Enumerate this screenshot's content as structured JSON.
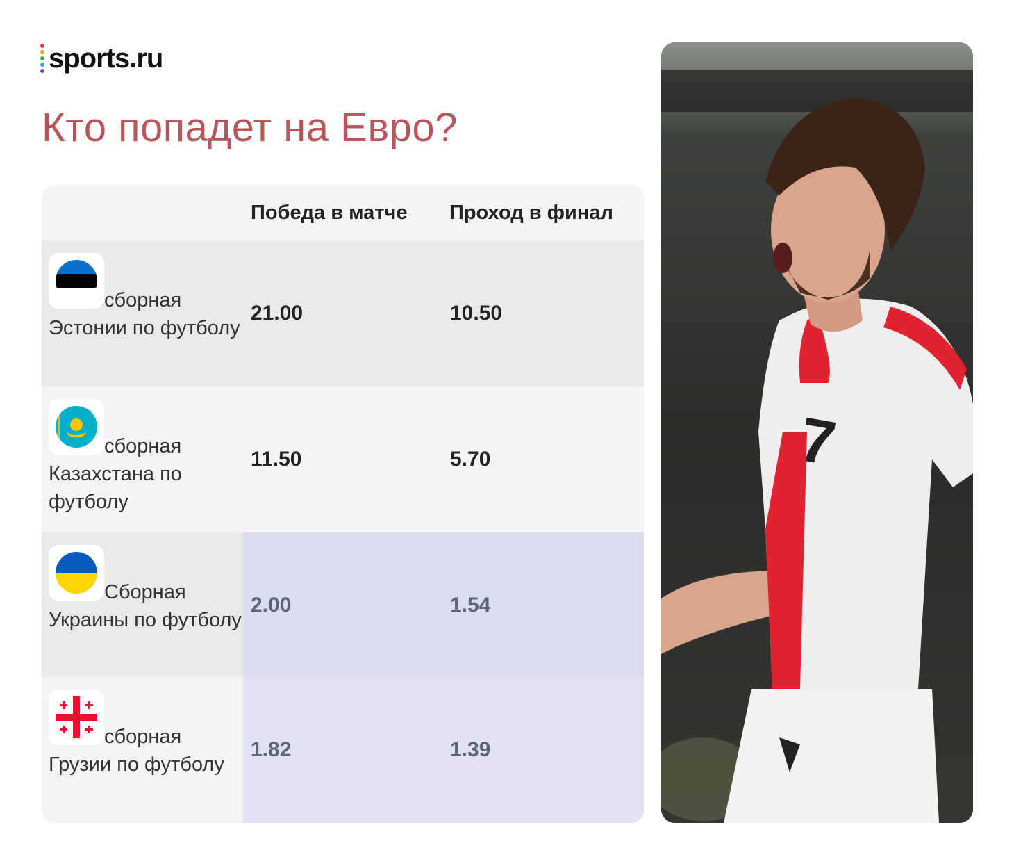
{
  "brand": {
    "name": "sports.ru"
  },
  "title": "Кто попадет на Евро?",
  "table": {
    "columns": [
      "Победа в матче",
      "Проход в финал"
    ],
    "rows": [
      {
        "team_first": "сборная",
        "team_rest": "Эстонии по футболу",
        "flag": "estonia-flag-icon",
        "win": "21.00",
        "final": "10.50",
        "highlight": false
      },
      {
        "team_first": "сборная",
        "team_rest": "Казахстана по футболу",
        "flag": "kazakhstan-flag-icon",
        "win": "11.50",
        "final": "5.70",
        "highlight": false
      },
      {
        "team_first": "Сборная",
        "team_rest": "Украины по футболу",
        "flag": "ukraine-flag-icon",
        "win": "2.00",
        "final": "1.54",
        "highlight": true
      },
      {
        "team_first": "сборная",
        "team_rest": "Грузии по футболу",
        "flag": "georgia-flag-icon",
        "win": "1.82",
        "final": "1.39",
        "highlight": true
      }
    ]
  },
  "photo": {
    "number": "7"
  },
  "colors": {
    "title": "#b9545a",
    "row_gray": "#e9e9e9",
    "row_light": "#f4f4f4",
    "highlight": "#dcdcf0",
    "highlight_text": "#5d6577",
    "logo_dots": [
      "#ee3b3b",
      "#f7a21b",
      "#2fb34a",
      "#2aa9e0",
      "#8a3fb8"
    ]
  }
}
